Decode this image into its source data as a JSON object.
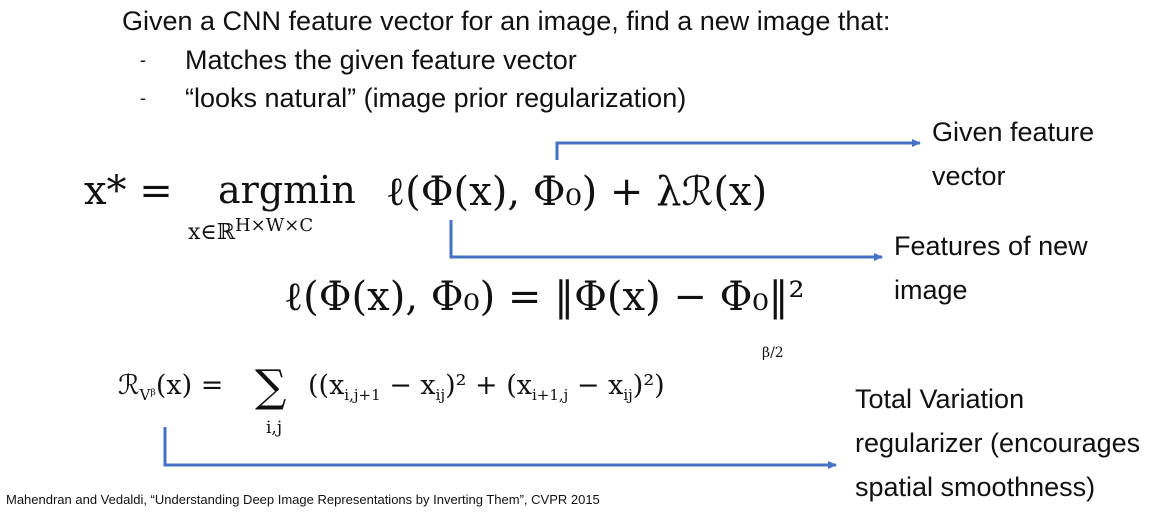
{
  "slide": {
    "intro": "Given a CNN feature vector for an image, find a new image that:",
    "bullets": [
      {
        "dash": "-",
        "text": "Matches the given feature vector"
      },
      {
        "dash": "-",
        "text": "“looks natural” (image prior regularization)"
      }
    ],
    "equations": {
      "eq1_lhs": "x* =",
      "eq1_op": "argmin",
      "eq1_sub": "x∈ℝ",
      "eq1_sup": "H×W×C",
      "eq1_rhs": "ℓ(Φ(x), Φ₀) + λℛ(x)",
      "eq2": "ℓ(Φ(x), Φ₀) = ‖Φ(x) − Φ₀‖²",
      "eq3_lhs": "ℛ",
      "eq3_lhs_sub": "Vᵝ",
      "eq3_lhs_rest": "(x) =",
      "eq3_sum": "∑",
      "eq3_sum_sub": "i,j",
      "eq3_body": "((x",
      "eq3_body_s1": "i,j+1",
      "eq3_body_m1": " − x",
      "eq3_body_s2": "ij",
      "eq3_body_m2": ")² + (x",
      "eq3_body_s3": "i+1,j",
      "eq3_body_m3": " − x",
      "eq3_body_s4": "ij",
      "eq3_body_end": ")²)",
      "eq3_exp": "β/2"
    },
    "annotations": {
      "given_line1": "Given feature",
      "given_line2": "vector",
      "features_line1": "Features of new",
      "features_line2": "image",
      "tv_line1": "Total Variation",
      "tv_line2": "regularizer (encourages",
      "tv_line3": "spatial smoothness)"
    },
    "citation": "Mahendran and Vedaldi, “Understanding Deep Image Representations by Inverting Them”, CVPR 2015",
    "arrow_color": "#4472C4"
  }
}
